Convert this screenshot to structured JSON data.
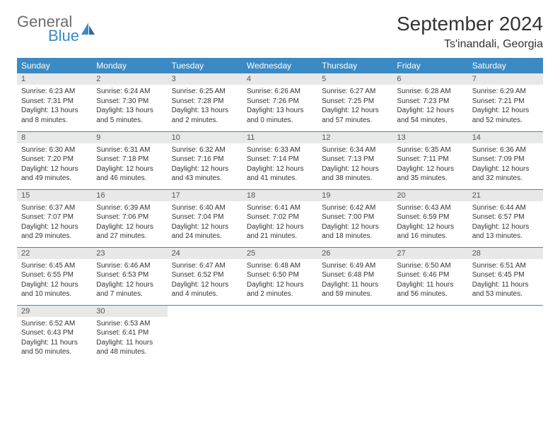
{
  "logo": {
    "text1": "General",
    "text2": "Blue",
    "icon_color": "#3b8ac4"
  },
  "header": {
    "month_title": "September 2024",
    "location": "Ts'inandali, Georgia"
  },
  "colors": {
    "accent": "#3b8ac4",
    "day_header_bg": "#e8e8e8",
    "text": "#333333"
  },
  "day_names": [
    "Sunday",
    "Monday",
    "Tuesday",
    "Wednesday",
    "Thursday",
    "Friday",
    "Saturday"
  ],
  "weeks": [
    [
      {
        "n": "1",
        "sr": "6:23 AM",
        "ss": "7:31 PM",
        "dl": "13 hours and 8 minutes."
      },
      {
        "n": "2",
        "sr": "6:24 AM",
        "ss": "7:30 PM",
        "dl": "13 hours and 5 minutes."
      },
      {
        "n": "3",
        "sr": "6:25 AM",
        "ss": "7:28 PM",
        "dl": "13 hours and 2 minutes."
      },
      {
        "n": "4",
        "sr": "6:26 AM",
        "ss": "7:26 PM",
        "dl": "13 hours and 0 minutes."
      },
      {
        "n": "5",
        "sr": "6:27 AM",
        "ss": "7:25 PM",
        "dl": "12 hours and 57 minutes."
      },
      {
        "n": "6",
        "sr": "6:28 AM",
        "ss": "7:23 PM",
        "dl": "12 hours and 54 minutes."
      },
      {
        "n": "7",
        "sr": "6:29 AM",
        "ss": "7:21 PM",
        "dl": "12 hours and 52 minutes."
      }
    ],
    [
      {
        "n": "8",
        "sr": "6:30 AM",
        "ss": "7:20 PM",
        "dl": "12 hours and 49 minutes."
      },
      {
        "n": "9",
        "sr": "6:31 AM",
        "ss": "7:18 PM",
        "dl": "12 hours and 46 minutes."
      },
      {
        "n": "10",
        "sr": "6:32 AM",
        "ss": "7:16 PM",
        "dl": "12 hours and 43 minutes."
      },
      {
        "n": "11",
        "sr": "6:33 AM",
        "ss": "7:14 PM",
        "dl": "12 hours and 41 minutes."
      },
      {
        "n": "12",
        "sr": "6:34 AM",
        "ss": "7:13 PM",
        "dl": "12 hours and 38 minutes."
      },
      {
        "n": "13",
        "sr": "6:35 AM",
        "ss": "7:11 PM",
        "dl": "12 hours and 35 minutes."
      },
      {
        "n": "14",
        "sr": "6:36 AM",
        "ss": "7:09 PM",
        "dl": "12 hours and 32 minutes."
      }
    ],
    [
      {
        "n": "15",
        "sr": "6:37 AM",
        "ss": "7:07 PM",
        "dl": "12 hours and 29 minutes."
      },
      {
        "n": "16",
        "sr": "6:39 AM",
        "ss": "7:06 PM",
        "dl": "12 hours and 27 minutes."
      },
      {
        "n": "17",
        "sr": "6:40 AM",
        "ss": "7:04 PM",
        "dl": "12 hours and 24 minutes."
      },
      {
        "n": "18",
        "sr": "6:41 AM",
        "ss": "7:02 PM",
        "dl": "12 hours and 21 minutes."
      },
      {
        "n": "19",
        "sr": "6:42 AM",
        "ss": "7:00 PM",
        "dl": "12 hours and 18 minutes."
      },
      {
        "n": "20",
        "sr": "6:43 AM",
        "ss": "6:59 PM",
        "dl": "12 hours and 16 minutes."
      },
      {
        "n": "21",
        "sr": "6:44 AM",
        "ss": "6:57 PM",
        "dl": "12 hours and 13 minutes."
      }
    ],
    [
      {
        "n": "22",
        "sr": "6:45 AM",
        "ss": "6:55 PM",
        "dl": "12 hours and 10 minutes."
      },
      {
        "n": "23",
        "sr": "6:46 AM",
        "ss": "6:53 PM",
        "dl": "12 hours and 7 minutes."
      },
      {
        "n": "24",
        "sr": "6:47 AM",
        "ss": "6:52 PM",
        "dl": "12 hours and 4 minutes."
      },
      {
        "n": "25",
        "sr": "6:48 AM",
        "ss": "6:50 PM",
        "dl": "12 hours and 2 minutes."
      },
      {
        "n": "26",
        "sr": "6:49 AM",
        "ss": "6:48 PM",
        "dl": "11 hours and 59 minutes."
      },
      {
        "n": "27",
        "sr": "6:50 AM",
        "ss": "6:46 PM",
        "dl": "11 hours and 56 minutes."
      },
      {
        "n": "28",
        "sr": "6:51 AM",
        "ss": "6:45 PM",
        "dl": "11 hours and 53 minutes."
      }
    ],
    [
      {
        "n": "29",
        "sr": "6:52 AM",
        "ss": "6:43 PM",
        "dl": "11 hours and 50 minutes."
      },
      {
        "n": "30",
        "sr": "6:53 AM",
        "ss": "6:41 PM",
        "dl": "11 hours and 48 minutes."
      },
      null,
      null,
      null,
      null,
      null
    ]
  ],
  "labels": {
    "sunrise": "Sunrise:",
    "sunset": "Sunset:",
    "daylight": "Daylight:"
  }
}
